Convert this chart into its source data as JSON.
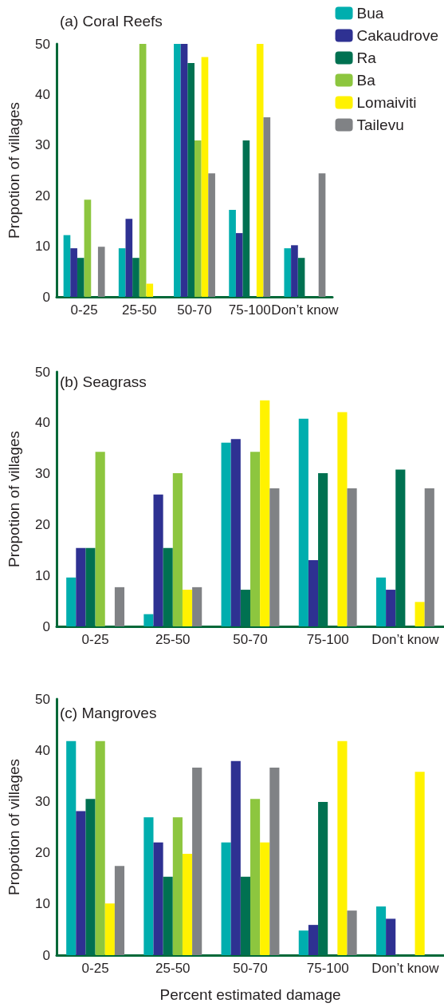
{
  "chart_data": [
    {
      "type": "bar",
      "title": "(a) Coral Reefs",
      "ylabel": "Propotion of villages",
      "categories": [
        "0-25",
        "25-50",
        "50-70",
        "75-100",
        "Don’t know"
      ],
      "ylim": [
        0,
        50
      ],
      "yticks": [
        0,
        10,
        20,
        30,
        40,
        50
      ],
      "grid": false,
      "legend": "top right",
      "series": [
        {
          "name": "Bua",
          "color": "#00aeae",
          "values": [
            12.2,
            9.6,
            50,
            17.2,
            9.6
          ]
        },
        {
          "name": "Cakaudrove",
          "color": "#2e3192",
          "values": [
            9.6,
            15.4,
            50,
            12.6,
            10.2
          ]
        },
        {
          "name": "Ra",
          "color": "#007151",
          "values": [
            7.7,
            7.7,
            46.2,
            30.9,
            7.7
          ]
        },
        {
          "name": "Ba",
          "color": "#8dc63f",
          "values": [
            19.2,
            50,
            30.9,
            0,
            0
          ]
        },
        {
          "name": "Lomaiviti",
          "color": "#fff200",
          "values": [
            0,
            2.6,
            47.4,
            50,
            0
          ]
        },
        {
          "name": "Tailevu",
          "color": "#808285",
          "values": [
            9.9,
            0,
            24.4,
            35.5,
            24.4
          ]
        }
      ]
    },
    {
      "type": "bar",
      "title": "(b) Seagrass",
      "ylabel": "Propotion of villages",
      "categories": [
        "0-25",
        "25-50",
        "50-70",
        "75-100",
        "Don’t know"
      ],
      "ylim": [
        0,
        50
      ],
      "yticks": [
        0,
        10,
        20,
        30,
        40,
        50
      ],
      "grid": false,
      "series": [
        {
          "color": "#00aeae",
          "values": [
            9.6,
            2.4,
            36.1,
            40.8,
            9.6
          ]
        },
        {
          "color": "#2e3192",
          "values": [
            15.4,
            25.9,
            36.8,
            13.0,
            7.2
          ]
        },
        {
          "color": "#007151",
          "values": [
            15.4,
            15.4,
            7.2,
            30.1,
            30.8
          ]
        },
        {
          "color": "#8dc63f",
          "values": [
            34.3,
            30.1,
            34.3,
            0,
            0
          ]
        },
        {
          "color": "#fff200",
          "values": [
            0,
            7.2,
            44.4,
            42.1,
            4.8
          ]
        },
        {
          "color": "#808285",
          "values": [
            7.7,
            7.7,
            27.1,
            27.1,
            27.1
          ]
        }
      ]
    },
    {
      "type": "bar",
      "title": "(c) Mangroves",
      "ylabel": "Propotion of villages",
      "xlabel": "Percent estimated damage",
      "categories": [
        "0-25",
        "25-50",
        "50-70",
        "75-100",
        "Don’t know"
      ],
      "ylim": [
        0,
        50
      ],
      "yticks": [
        0,
        10,
        20,
        30,
        40,
        50
      ],
      "grid": false,
      "series": [
        {
          "color": "#00aeae",
          "values": [
            41.8,
            26.9,
            22.0,
            4.8,
            9.5
          ]
        },
        {
          "color": "#2e3192",
          "values": [
            28.1,
            22.0,
            37.9,
            5.9,
            7.1
          ]
        },
        {
          "color": "#007151",
          "values": [
            30.5,
            15.3,
            15.3,
            29.9,
            0
          ]
        },
        {
          "color": "#8dc63f",
          "values": [
            41.8,
            26.9,
            30.5,
            0,
            0
          ]
        },
        {
          "color": "#fff200",
          "values": [
            10.1,
            19.8,
            22.0,
            41.8,
            35.8
          ]
        },
        {
          "color": "#808285",
          "values": [
            17.4,
            36.6,
            36.6,
            8.7,
            0
          ]
        }
      ]
    }
  ]
}
